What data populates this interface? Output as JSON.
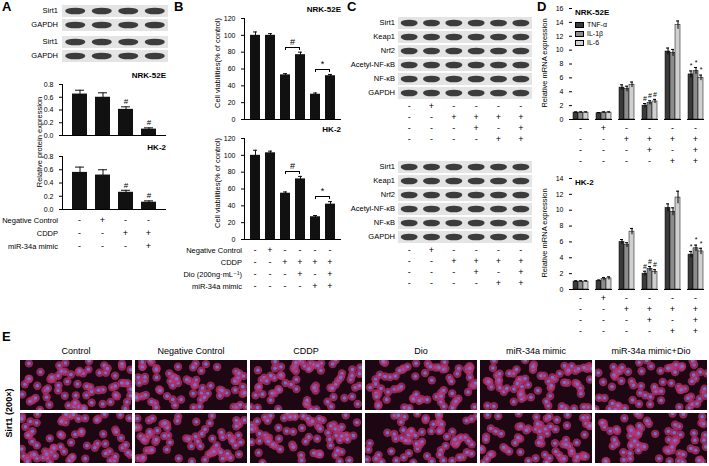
{
  "chart_data": [
    {
      "panel": "A",
      "type": "bar",
      "title": "NRK-52E",
      "categories": [
        null,
        null,
        null,
        null
      ],
      "values": [
        0.65,
        0.6,
        0.41,
        0.1
      ],
      "errors": [
        0.06,
        0.07,
        0.04,
        0.02
      ],
      "sig": [
        null,
        null,
        "#",
        "#"
      ],
      "color": "#111111",
      "ylim": [
        0,
        0.8
      ],
      "yticks": [
        {
          "value": 0,
          "label": "0.0"
        },
        0.2,
        0.4,
        0.6,
        0.8
      ]
    },
    {
      "type": "bar",
      "title": "HK-2",
      "y_label": "Relative protein expression",
      "categories": [
        null,
        null,
        null,
        null
      ],
      "values": [
        0.56,
        0.52,
        0.26,
        0.11
      ],
      "errors": [
        0.08,
        0.08,
        0.03,
        0.02
      ],
      "sig": [
        null,
        null,
        "#",
        "#"
      ],
      "color": "#111111",
      "ylim": [
        0,
        0.8
      ],
      "yticks": [
        {
          "value": 0,
          "label": "0.0"
        },
        0.2,
        0.4,
        0.6,
        0.8
      ],
      "conditions": [
        {
          "label": "Negative Control",
          "signs": [
            "-",
            "+",
            "-",
            "-"
          ]
        },
        {
          "label": "CDDP",
          "signs": [
            "-",
            "-",
            "+",
            "+"
          ]
        },
        {
          "label": "miR-34a mimic",
          "signs": [
            "-",
            "-",
            "-",
            "+"
          ]
        }
      ]
    },
    {
      "panel": "B",
      "type": "bar",
      "title": "NRK-52E",
      "y_label": "Cell viabilities(% of control)",
      "categories": [
        null,
        null,
        null,
        null,
        null,
        null
      ],
      "values": [
        100,
        100,
        53,
        77,
        30,
        52
      ],
      "errors": [
        4,
        2,
        1.5,
        3,
        1.5,
        1.5
      ],
      "comparisons": [
        {
          "from": 2,
          "to": 3,
          "label": "#"
        },
        {
          "from": 4,
          "to": 5,
          "label": "*"
        }
      ],
      "color": "#111111",
      "ylim": [
        0,
        120
      ],
      "yticks": [
        0,
        20,
        40,
        60,
        80,
        100,
        120
      ]
    },
    {
      "type": "bar",
      "title": "HK-2",
      "y_label": "Cell viabilities(% of control)",
      "categories": [
        null,
        null,
        null,
        null,
        null,
        null
      ],
      "values": [
        100,
        103,
        55,
        72,
        27,
        42
      ],
      "errors": [
        6,
        2,
        1.5,
        3,
        1.5,
        3
      ],
      "comparisons": [
        {
          "from": 2,
          "to": 3,
          "label": "#"
        },
        {
          "from": 4,
          "to": 5,
          "label": "*"
        }
      ],
      "color": "#111111",
      "ylim": [
        0,
        120
      ],
      "yticks": [
        0,
        20,
        40,
        60,
        80,
        100,
        120
      ],
      "conditions": [
        {
          "label": "Negative Control",
          "signs": [
            "-",
            "+",
            "-",
            "-",
            "-",
            "-"
          ]
        },
        {
          "label": "CDDP",
          "signs": [
            "-",
            "-",
            "+",
            "+",
            "+",
            "+"
          ]
        },
        {
          "label": "Dio (200ng·mL⁻¹)",
          "signs": [
            "-",
            "-",
            "-",
            "+",
            "-",
            "+"
          ]
        },
        {
          "label": "miR-34a mimic",
          "signs": [
            "-",
            "-",
            "-",
            "-",
            "+",
            "+"
          ]
        }
      ]
    },
    {
      "panel": "D",
      "type": "bar",
      "title": "NRK-52E",
      "y_label": "Relative mRNA expression",
      "categories": [
        null,
        null,
        null,
        null,
        null,
        null
      ],
      "series": [
        {
          "name": "TNF-α",
          "color": "#3a3a3a",
          "values": [
            1,
            0.9,
            4.6,
            2.0,
            9.8,
            6.5
          ],
          "errors": [
            0.1,
            0.1,
            0.4,
            0.3,
            0.5,
            0.5
          ],
          "sig": [
            null,
            null,
            null,
            "#",
            null,
            "*"
          ]
        },
        {
          "name": "IL-1β",
          "color": "#8c8c8c",
          "values": [
            1,
            1,
            4.4,
            2.4,
            9.6,
            7.0
          ],
          "errors": [
            0.1,
            0.1,
            0.4,
            0.3,
            0.5,
            0.5
          ],
          "sig": [
            null,
            null,
            null,
            "#",
            null,
            "*"
          ]
        },
        {
          "name": "IL-6",
          "color": "#d0d0d0",
          "values": [
            1,
            1,
            5.0,
            2.6,
            13.6,
            6.0
          ],
          "errors": [
            0.1,
            0.1,
            0.4,
            0.3,
            0.6,
            0.4
          ],
          "sig": [
            null,
            null,
            null,
            "#",
            null,
            "*"
          ]
        }
      ],
      "legend": "top-left",
      "ylim": [
        0,
        16
      ],
      "yticks": [
        0,
        2,
        4,
        6,
        8,
        10,
        12,
        14,
        16
      ],
      "conditions": [
        {
          "signs": [
            "-",
            "+",
            "-",
            "-",
            "-",
            "-"
          ]
        },
        {
          "signs": [
            "-",
            "-",
            "+",
            "+",
            "+",
            "+"
          ]
        },
        {
          "signs": [
            "-",
            "-",
            "-",
            "+",
            "-",
            "+"
          ]
        },
        {
          "signs": [
            "-",
            "-",
            "-",
            "-",
            "+",
            "+"
          ]
        }
      ]
    },
    {
      "type": "bar",
      "title": "HK-2",
      "y_label": "Relative mRNA expression",
      "categories": [
        null,
        null,
        null,
        null,
        null,
        null
      ],
      "series": [
        {
          "name": "TNF-α",
          "color": "#3a3a3a",
          "values": [
            1,
            1.1,
            6.0,
            2.0,
            10.3,
            4.4
          ],
          "errors": [
            0.1,
            0.1,
            0.3,
            0.3,
            0.5,
            0.4
          ],
          "sig": [
            null,
            null,
            null,
            "#",
            null,
            "*"
          ]
        },
        {
          "name": "IL-1β",
          "color": "#8c8c8c",
          "values": [
            1,
            1.3,
            5.6,
            2.6,
            9.8,
            5.2
          ],
          "errors": [
            0.1,
            0.2,
            0.3,
            0.3,
            0.5,
            0.4
          ],
          "sig": [
            null,
            null,
            null,
            "#",
            null,
            "*"
          ]
        },
        {
          "name": "IL-6",
          "color": "#d0d0d0",
          "values": [
            1,
            1.4,
            7.3,
            2.2,
            11.6,
            4.8
          ],
          "errors": [
            0.1,
            0.2,
            0.4,
            0.3,
            0.8,
            0.4
          ],
          "sig": [
            null,
            null,
            null,
            "#",
            null,
            "*"
          ]
        }
      ],
      "ylim": [
        0,
        14
      ],
      "yticks": [
        0,
        2,
        4,
        6,
        8,
        10,
        12,
        14
      ],
      "conditions": [
        {
          "signs": [
            "-",
            "+",
            "-",
            "-",
            "-",
            "-"
          ]
        },
        {
          "signs": [
            "-",
            "-",
            "+",
            "+",
            "+",
            "+"
          ]
        },
        {
          "signs": [
            "-",
            "-",
            "-",
            "+",
            "-",
            "+"
          ]
        },
        {
          "signs": [
            "-",
            "-",
            "-",
            "-",
            "+",
            "+"
          ]
        }
      ]
    }
  ],
  "blots": [
    {
      "lanes": 4,
      "groups": [
        {
          "labels": [
            "Sirt1",
            "GAPDH"
          ]
        },
        {
          "labels": [
            "Sirt1",
            "GAPDH"
          ]
        }
      ]
    },
    {
      "panel": "C",
      "lanes": 6,
      "groups": [
        {
          "labels": [
            "Sirt1",
            "Keap1",
            "Nrf2",
            "Acetyl-NF-κB",
            "NF-κB",
            "GAPDH"
          ],
          "conditions": [
            {
              "signs": [
                "-",
                "+",
                "-",
                "-",
                "-",
                "-"
              ]
            },
            {
              "signs": [
                "-",
                "-",
                "+",
                "+",
                "+",
                "+"
              ]
            },
            {
              "signs": [
                "-",
                "-",
                "-",
                "+",
                "-",
                "+"
              ]
            },
            {
              "signs": [
                "-",
                "-",
                "-",
                "-",
                "+",
                "+"
              ]
            }
          ]
        },
        {
          "labels": [
            "Sirt1",
            "Keap1",
            "Nrf2",
            "Acetyl-NF-κB",
            "NF-κB",
            "GAPDH"
          ],
          "conditions": [
            {
              "signs": [
                "-",
                "+",
                "-",
                "-",
                "-",
                "-"
              ]
            },
            {
              "signs": [
                "-",
                "-",
                "+",
                "+",
                "+",
                "+"
              ]
            },
            {
              "signs": [
                "-",
                "-",
                "-",
                "+",
                "-",
                "+"
              ]
            },
            {
              "signs": [
                "-",
                "-",
                "-",
                "-",
                "+",
                "+"
              ]
            }
          ]
        }
      ]
    }
  ],
  "images": {
    "panel": "E",
    "columns": [
      "Control",
      "Negative Control",
      "CDDP",
      "Dio",
      "miR-34a mimic",
      "miR-34a mimic+Dio"
    ],
    "rows": 2,
    "row_label": "Sirt1 (200×)"
  }
}
